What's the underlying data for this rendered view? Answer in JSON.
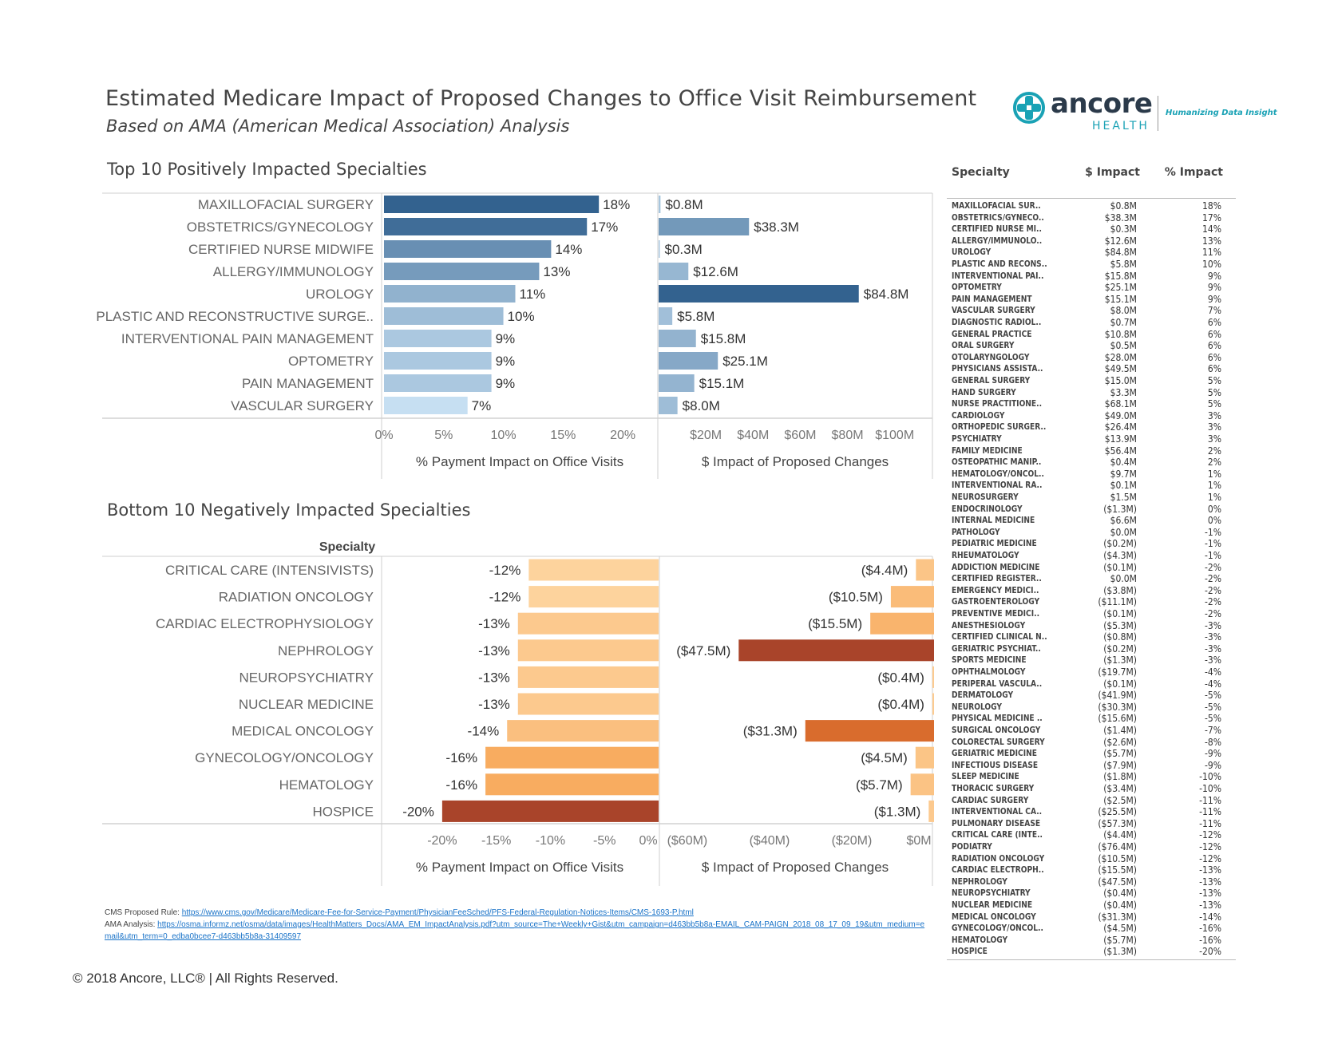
{
  "header": {
    "title": "Estimated Medicare Impact of Proposed Changes to Office Visit Reimbursement",
    "subtitle": "Based on AMA (American Medical Association) Analysis"
  },
  "logo": {
    "brand": "ancore",
    "sub": "HEALTH",
    "tagline": "Humanizing Data Insight"
  },
  "chart_data": [
    {
      "type": "bar",
      "title": "Top 10 Positively Impacted Specialties",
      "categories": [
        "MAXILLOFACIAL SURGERY",
        "OBSTETRICS/GYNECOLOGY",
        "CERTIFIED NURSE MIDWIFE",
        "ALLERGY/IMMUNOLOGY",
        "UROLOGY",
        "PLASTIC AND RECONSTRUCTIVE SURGE..",
        "INTERVENTIONAL PAIN MANAGEMENT",
        "OPTOMETRY",
        "PAIN MANAGEMENT",
        "VASCULAR SURGERY"
      ],
      "series": [
        {
          "name": "% Payment Impact on Office Visits",
          "values": [
            18,
            17,
            14,
            13,
            11,
            10,
            9,
            9,
            9,
            7
          ],
          "labels": [
            "18%",
            "17%",
            "14%",
            "13%",
            "11%",
            "10%",
            "9%",
            "9%",
            "9%",
            "7%"
          ],
          "xlim": [
            0,
            22
          ],
          "ticks": [
            "0%",
            "5%",
            "10%",
            "15%",
            "20%"
          ],
          "tick_values": [
            0,
            5,
            10,
            15,
            20
          ]
        },
        {
          "name": "$ Impact of Proposed Changes",
          "values": [
            0.8,
            38.3,
            0.3,
            12.6,
            84.8,
            5.8,
            15.8,
            25.1,
            15.1,
            8.0
          ],
          "labels": [
            "$0.8M",
            "$38.3M",
            "$0.3M",
            "$12.6M",
            "$84.8M",
            "$5.8M",
            "$15.8M",
            "$25.1M",
            "$15.1M",
            "$8.0M"
          ],
          "xlim": [
            0,
            116
          ],
          "ticks": [
            "$20M",
            "$40M",
            "$60M",
            "$80M",
            "$100M"
          ],
          "tick_values": [
            20,
            40,
            60,
            80,
            100
          ]
        }
      ],
      "xlabels": [
        "% Payment Impact on Office Visits",
        "$ Impact of Proposed Changes"
      ]
    },
    {
      "type": "bar",
      "title": "Bottom 10 Negatively Impacted Specialties",
      "ylabel": "Specialty",
      "categories": [
        "CRITICAL CARE (INTENSIVISTS)",
        "RADIATION ONCOLOGY",
        "CARDIAC ELECTROPHYSIOLOGY",
        "NEPHROLOGY",
        "NEUROPSYCHIATRY",
        "NUCLEAR MEDICINE",
        "MEDICAL ONCOLOGY",
        "GYNECOLOGY/ONCOLOGY",
        "HEMATOLOGY",
        "HOSPICE"
      ],
      "series": [
        {
          "name": "% Payment Impact on Office Visits",
          "values": [
            -12,
            -12,
            -13,
            -13,
            -13,
            -13,
            -14,
            -16,
            -16,
            -20
          ],
          "labels": [
            "-12%",
            "-12%",
            "-13%",
            "-13%",
            "-13%",
            "-13%",
            "-14%",
            "-16%",
            "-16%",
            "-20%"
          ],
          "xlim": [
            -22.5,
            0
          ],
          "ticks": [
            "-20%",
            "-15%",
            "-10%",
            "-5%",
            "0%"
          ],
          "tick_values": [
            -20,
            -15,
            -10,
            -5,
            0
          ]
        },
        {
          "name": "$ Impact of Proposed Changes",
          "values": [
            -4.4,
            -10.5,
            -15.5,
            -47.5,
            -0.4,
            -0.4,
            -31.3,
            -4.5,
            -5.7,
            -1.3
          ],
          "labels": [
            "($4.4M)",
            "($10.5M)",
            "($15.5M)",
            "($47.5M)",
            "($0.4M)",
            "($0.4M)",
            "($31.3M)",
            "($4.5M)",
            "($5.7M)",
            "($1.3M)"
          ],
          "xlim": [
            -66,
            0
          ],
          "ticks": [
            "($60M)",
            "($40M)",
            "($20M)",
            "$0M"
          ],
          "tick_values": [
            -60,
            -40,
            -20,
            0
          ]
        }
      ],
      "xlabels": [
        "% Payment Impact on Office Visits",
        "$ Impact of Proposed Changes"
      ]
    },
    {
      "type": "table",
      "columns": [
        "Specialty",
        "$ Impact",
        "% Impact"
      ],
      "rows": [
        [
          "MAXILLOFACIAL SUR..",
          "$0.8M",
          "18%"
        ],
        [
          "OBSTETRICS/GYNECO..",
          "$38.3M",
          "17%"
        ],
        [
          "CERTIFIED NURSE MI..",
          "$0.3M",
          "14%"
        ],
        [
          "ALLERGY/IMMUNOLO..",
          "$12.6M",
          "13%"
        ],
        [
          "UROLOGY",
          "$84.8M",
          "11%"
        ],
        [
          "PLASTIC AND RECONS..",
          "$5.8M",
          "10%"
        ],
        [
          "INTERVENTIONAL PAI..",
          "$15.8M",
          "9%"
        ],
        [
          "OPTOMETRY",
          "$25.1M",
          "9%"
        ],
        [
          "PAIN MANAGEMENT",
          "$15.1M",
          "9%"
        ],
        [
          "VASCULAR SURGERY",
          "$8.0M",
          "7%"
        ],
        [
          "DIAGNOSTIC RADIOL..",
          "$0.7M",
          "6%"
        ],
        [
          "GENERAL PRACTICE",
          "$10.8M",
          "6%"
        ],
        [
          "ORAL SURGERY",
          "$0.5M",
          "6%"
        ],
        [
          "OTOLARYNGOLOGY",
          "$28.0M",
          "6%"
        ],
        [
          "PHYSICIANS ASSISTA..",
          "$49.5M",
          "6%"
        ],
        [
          "GENERAL SURGERY",
          "$15.0M",
          "5%"
        ],
        [
          "HAND SURGERY",
          "$3.3M",
          "5%"
        ],
        [
          "NURSE PRACTITIONE..",
          "$68.1M",
          "5%"
        ],
        [
          "CARDIOLOGY",
          "$49.0M",
          "3%"
        ],
        [
          "ORTHOPEDIC SURGER..",
          "$26.4M",
          "3%"
        ],
        [
          "PSYCHIATRY",
          "$13.9M",
          "3%"
        ],
        [
          "FAMILY MEDICINE",
          "$56.4M",
          "2%"
        ],
        [
          "OSTEOPATHIC MANIP..",
          "$0.4M",
          "2%"
        ],
        [
          "HEMATOLOGY/ONCOL..",
          "$9.7M",
          "1%"
        ],
        [
          "INTERVENTIONAL RA..",
          "$0.1M",
          "1%"
        ],
        [
          "NEUROSURGERY",
          "$1.5M",
          "1%"
        ],
        [
          "ENDOCRINOLOGY",
          "($1.3M)",
          "0%"
        ],
        [
          "INTERNAL MEDICINE",
          "$6.6M",
          "0%"
        ],
        [
          "PATHOLOGY",
          "$0.0M",
          "-1%"
        ],
        [
          "PEDIATRIC MEDICINE",
          "($0.2M)",
          "-1%"
        ],
        [
          "RHEUMATOLOGY",
          "($4.3M)",
          "-1%"
        ],
        [
          "ADDICTION MEDICINE",
          "($0.1M)",
          "-2%"
        ],
        [
          "CERTIFIED REGISTER..",
          "$0.0M",
          "-2%"
        ],
        [
          "EMERGENCY MEDICI..",
          "($3.8M)",
          "-2%"
        ],
        [
          "GASTROENTEROLOGY",
          "($11.1M)",
          "-2%"
        ],
        [
          "PREVENTIVE MEDICI..",
          "($0.1M)",
          "-2%"
        ],
        [
          "ANESTHESIOLOGY",
          "($5.3M)",
          "-3%"
        ],
        [
          "CERTIFIED CLINICAL N..",
          "($0.8M)",
          "-3%"
        ],
        [
          "GERIATRIC PSYCHIAT..",
          "($0.2M)",
          "-3%"
        ],
        [
          "SPORTS MEDICINE",
          "($1.3M)",
          "-3%"
        ],
        [
          "OPHTHALMOLOGY",
          "($19.7M)",
          "-4%"
        ],
        [
          "PERIPERAL VASCULA..",
          "($0.1M)",
          "-4%"
        ],
        [
          "DERMATOLOGY",
          "($41.9M)",
          "-5%"
        ],
        [
          "NEUROLOGY",
          "($30.3M)",
          "-5%"
        ],
        [
          "PHYSICAL MEDICINE ..",
          "($15.6M)",
          "-5%"
        ],
        [
          "SURGICAL ONCOLOGY",
          "($1.4M)",
          "-7%"
        ],
        [
          "COLORECTAL SURGERY",
          "($2.6M)",
          "-8%"
        ],
        [
          "GERIATRIC MEDICINE",
          "($5.7M)",
          "-9%"
        ],
        [
          "INFECTIOUS DISEASE",
          "($7.9M)",
          "-9%"
        ],
        [
          "SLEEP MEDICINE",
          "($1.8M)",
          "-10%"
        ],
        [
          "THORACIC SURGERY",
          "($3.4M)",
          "-10%"
        ],
        [
          "CARDIAC SURGERY",
          "($2.5M)",
          "-11%"
        ],
        [
          "INTERVENTIONAL CA..",
          "($25.5M)",
          "-11%"
        ],
        [
          "PULMONARY DISEASE",
          "($57.3M)",
          "-11%"
        ],
        [
          "CRITICAL CARE (INTE..",
          "($4.4M)",
          "-12%"
        ],
        [
          "PODIATRY",
          "($76.4M)",
          "-12%"
        ],
        [
          "RADIATION ONCOLOGY",
          "($10.5M)",
          "-12%"
        ],
        [
          "CARDIAC ELECTROPH..",
          "($15.5M)",
          "-13%"
        ],
        [
          "NEPHROLOGY",
          "($47.5M)",
          "-13%"
        ],
        [
          "NEUROPSYCHIATRY",
          "($0.4M)",
          "-13%"
        ],
        [
          "NUCLEAR MEDICINE",
          "($0.4M)",
          "-13%"
        ],
        [
          "MEDICAL ONCOLOGY",
          "($31.3M)",
          "-14%"
        ],
        [
          "GYNECOLOGY/ONCOL..",
          "($4.5M)",
          "-16%"
        ],
        [
          "HEMATOLOGY",
          "($5.7M)",
          "-16%"
        ],
        [
          "HOSPICE",
          "($1.3M)",
          "-20%"
        ]
      ]
    }
  ],
  "footer": {
    "cms_label": "CMS Proposed Rule: ",
    "cms_link": "https://www.cms.gov/Medicare/Medicare-Fee-for-Service-Payment/PhysicianFeeSched/PFS-Federal-Regulation-Notices-Items/CMS-1693-P.html",
    "ama_label": "AMA Analysis: ",
    "ama_link": "https://osma.informz.net/osma/data/images/HealthMatters_Docs/AMA_EM_ImpactAnalysis.pdf?utm_source=The+Weekly+Gist&utm_campaign=d463bb5b8a-EMAIL_CAM-PAIGN_2018_08_17_09_19&utm_medium=email&utm_term=0_edba0bcee7-d463bb5b8a-31409597",
    "copyright": "© 2018 Ancore, LLC® | All Rights Reserved."
  },
  "colors": {
    "pos_dark": "#33628f",
    "pos_light": "#c6dff2",
    "neg_light": "#fdd39d",
    "neg_dark": "#a9442a"
  }
}
